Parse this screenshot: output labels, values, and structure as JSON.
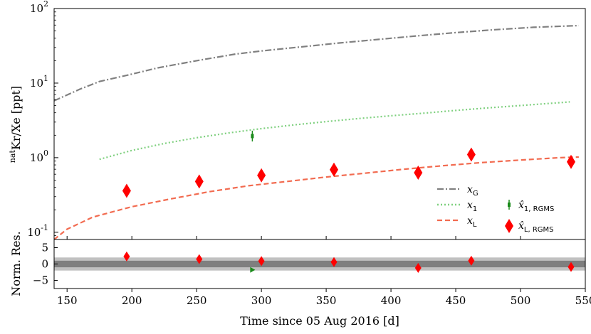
{
  "chart_data": {
    "type": "line",
    "xlabel": "Time since 05 Aug 2016 [d]",
    "xlim": [
      140,
      550
    ],
    "x_ticks": [
      "150",
      "200",
      "250",
      "300",
      "350",
      "400",
      "450",
      "500",
      "550"
    ],
    "top": {
      "ylabel_sup": "nat",
      "ylabel_main": "Kr/Xe [ppt]",
      "yscale": "log",
      "ylim": [
        0.08,
        100
      ],
      "y_ticks": [
        {
          "base": "10",
          "exp": "-1"
        },
        {
          "base": "10",
          "exp": "0"
        },
        {
          "base": "10",
          "exp": "1"
        },
        {
          "base": "10",
          "exp": "2"
        }
      ],
      "series": [
        {
          "name": "x",
          "sub": "G",
          "style": "dashdot",
          "color": "#808080",
          "x": [
            140,
            160,
            175,
            200,
            220,
            250,
            280,
            300,
            330,
            360,
            390,
            420,
            450,
            480,
            510,
            545
          ],
          "y": [
            5.8,
            8.3,
            10.5,
            13.2,
            16.0,
            20.0,
            24.5,
            27.0,
            30.5,
            34.5,
            38.5,
            43.0,
            47.5,
            52.0,
            56.0,
            59.0
          ]
        },
        {
          "name": "x",
          "sub": "1",
          "style": "dotted",
          "color": "#7fd07f",
          "x": [
            175,
            200,
            225,
            250,
            275,
            300,
            325,
            350,
            375,
            400,
            425,
            450,
            475,
            500,
            538
          ],
          "y": [
            0.95,
            1.25,
            1.55,
            1.85,
            2.15,
            2.45,
            2.75,
            3.05,
            3.35,
            3.65,
            3.95,
            4.3,
            4.65,
            5.0,
            5.6
          ]
        },
        {
          "name": "x",
          "sub": "L",
          "style": "dashed",
          "color": "#f26b50",
          "x": [
            140,
            150,
            170,
            200,
            230,
            260,
            290,
            320,
            350,
            380,
            410,
            440,
            470,
            500,
            530,
            545
          ],
          "y": [
            0.08,
            0.11,
            0.16,
            0.22,
            0.28,
            0.35,
            0.42,
            0.48,
            0.55,
            0.62,
            0.7,
            0.78,
            0.86,
            0.93,
            1.0,
            1.02
          ]
        }
      ],
      "points": [
        {
          "name": "x̂",
          "sub": "1, RGMS",
          "marker": "errorbar",
          "color": "#1a8a1a",
          "x": [
            293
          ],
          "y": [
            1.95
          ],
          "err": [
            [
              1.65,
              2.3
            ]
          ]
        },
        {
          "name": "x̂",
          "sub": "L, RGMS",
          "marker": "diamond",
          "color": "#ff0000",
          "x": [
            196,
            252,
            300,
            356,
            421,
            462,
            539
          ],
          "y": [
            0.36,
            0.48,
            0.58,
            0.69,
            0.63,
            1.1,
            0.88
          ]
        }
      ]
    },
    "bottom": {
      "ylabel": "Norm. Res.",
      "ylim": [
        -7.5,
        7.5
      ],
      "y_ticks": [
        "5",
        "0",
        "−5"
      ],
      "y_tick_values": [
        5,
        0,
        -5
      ],
      "bands": [
        {
          "sigma": 2,
          "color": "#c0c0c0"
        },
        {
          "sigma": 1,
          "color": "#7f7f7f"
        }
      ],
      "points": [
        {
          "marker": "diamond",
          "color": "#ff0000",
          "x": [
            196,
            252,
            300,
            356,
            421,
            462,
            539
          ],
          "y": [
            2.3,
            1.5,
            0.9,
            0.6,
            -1.2,
            1.0,
            -0.9
          ]
        },
        {
          "marker": "triangle",
          "color": "#1a8a1a",
          "x": [
            293
          ],
          "y": [
            -1.8
          ]
        }
      ]
    }
  }
}
